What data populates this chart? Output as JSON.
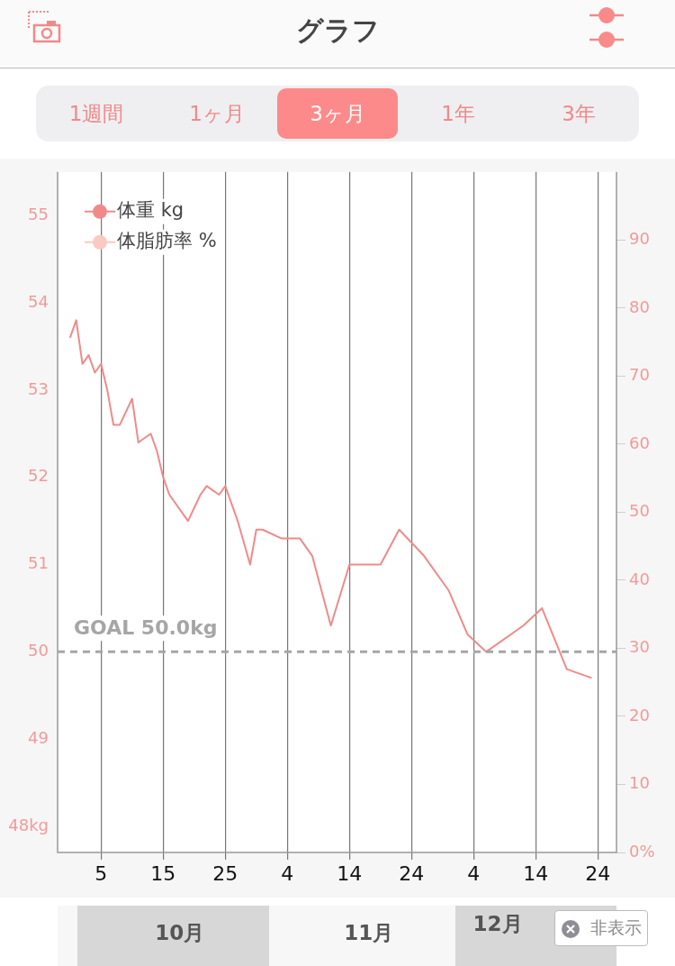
{
  "chart_data": {
    "type": "line",
    "title": "グラフ",
    "xlim": [
      "--09-28",
      "--12-27"
    ],
    "xticks": [
      {
        "value": "--10-05",
        "label": "5"
      },
      {
        "value": "--10-15",
        "label": "15"
      },
      {
        "value": "--10-25",
        "label": "25"
      },
      {
        "value": "--11-04",
        "label": "4"
      },
      {
        "value": "--11-14",
        "label": "14"
      },
      {
        "value": "--11-24",
        "label": "24"
      },
      {
        "value": "--12-04",
        "label": "4"
      },
      {
        "value": "--12-14",
        "label": "14"
      },
      {
        "value": "--12-24",
        "label": "24"
      }
    ],
    "ylim": [
      47.7,
      55.5
    ],
    "yticks": [
      {
        "value": 48,
        "label": "48kg"
      },
      49,
      50,
      51,
      52,
      53,
      54,
      55
    ],
    "y2lim": [
      0,
      100
    ],
    "y2ticks": [
      {
        "value": 0,
        "label": "0%"
      },
      10,
      20,
      30,
      40,
      50,
      60,
      70,
      80,
      90
    ],
    "series": [
      {
        "name": "体重 kg",
        "color": "#f08a8a",
        "x": [
          "--09-30",
          "--10-01",
          "--10-02",
          "--10-03",
          "--10-04",
          "--10-05",
          "--10-06",
          "--10-07",
          "--10-08",
          "--10-10",
          "--10-11",
          "--10-13",
          "--10-14",
          "--10-15",
          "--10-16",
          "--10-19",
          "--10-21",
          "--10-22",
          "--10-24",
          "--10-25",
          "--10-27",
          "--10-29",
          "--10-30",
          "--10-31",
          "--11-03",
          "--11-06",
          "--11-08",
          "--11-11",
          "--11-14",
          "--11-19",
          "--11-22",
          "--11-26",
          "--11-30",
          "--12-03",
          "--12-06",
          "--12-12",
          "--12-15",
          "--12-19",
          "--12-23"
        ],
        "values": [
          53.6,
          53.8,
          53.3,
          53.4,
          53.2,
          53.3,
          53.0,
          52.6,
          52.6,
          52.9,
          52.4,
          52.5,
          52.3,
          52.0,
          51.8,
          51.5,
          51.8,
          51.9,
          51.8,
          51.9,
          51.5,
          51.0,
          51.4,
          51.4,
          51.3,
          51.3,
          51.1,
          50.3,
          51.0,
          51.0,
          51.4,
          51.1,
          50.7,
          50.2,
          50.0,
          50.3,
          50.5,
          49.8,
          49.7
        ]
      },
      {
        "name": "体脂肪率 %",
        "color": "#fcc8c2"
      }
    ],
    "ref_lines": [
      {
        "axis": "y",
        "value": 50,
        "label": "GOAL 50.0kg",
        "color": "#a6a6a6",
        "line_style": "dashed"
      }
    ],
    "grid": "x",
    "legend": "top left",
    "marker": "none",
    "annotations": [
      "1週間",
      "1ヶ月",
      "3ヶ月",
      "1年",
      "3年",
      "10月",
      "11月",
      "12月",
      "非表示"
    ]
  }
}
